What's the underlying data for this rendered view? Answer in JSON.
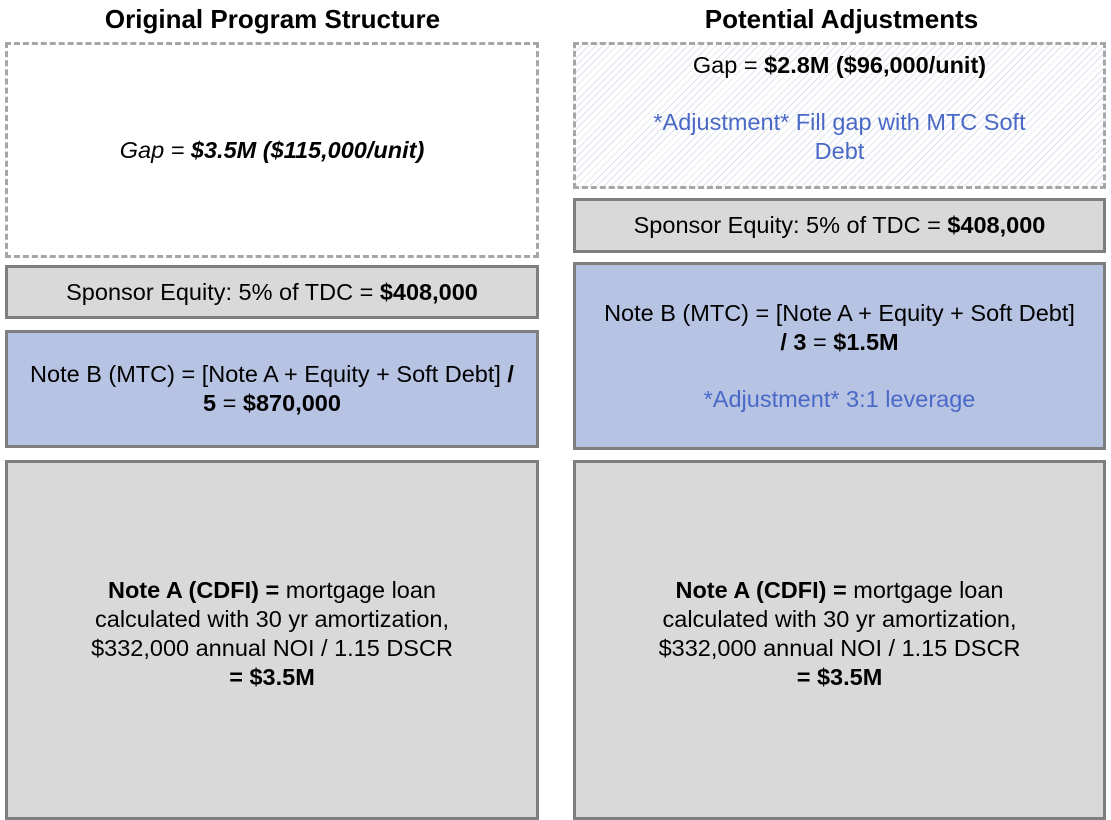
{
  "columns": [
    {
      "title": "Original Program Structure",
      "boxes": [
        {
          "text": [
            "Gap = ",
            "$3.5M ($115,000/unit)"
          ]
        },
        {
          "text": [
            "Sponsor Equity: 5% of TDC = ",
            "$408,000"
          ]
        },
        {
          "text": [
            "Note B (MTC) = [Note A + Equity + Soft Debt] ",
            "/ 5",
            " = ",
            "$870,000"
          ]
        },
        {
          "text": [
            "Note A (CDFI) =",
            " mortgage loan calculated with 30 yr amortization, $332,000 annual NOI / 1.15 DSCR",
            "= $3.5M"
          ]
        }
      ]
    },
    {
      "title": "Potential Adjustments",
      "boxes": [
        {
          "text": [
            "Gap = ",
            "$2.8M ($96,000/unit)"
          ],
          "adjustment": "*Adjustment* Fill gap with MTC Soft Debt"
        },
        {
          "text": [
            "Sponsor Equity: 5% of TDC = ",
            "$408,000"
          ]
        },
        {
          "text": [
            "Note B (MTC) = [Note A + Equity + Soft Debt] ",
            "/ 3",
            " = ",
            "$1.5M"
          ],
          "adjustment": "*Adjustment* 3:1 leverage"
        },
        {
          "text": [
            "Note A (CDFI) =",
            " mortgage loan calculated with 30 yr amortization, $332,000 annual NOI / 1.15 DSCR",
            "= $3.5M"
          ]
        }
      ]
    }
  ]
}
